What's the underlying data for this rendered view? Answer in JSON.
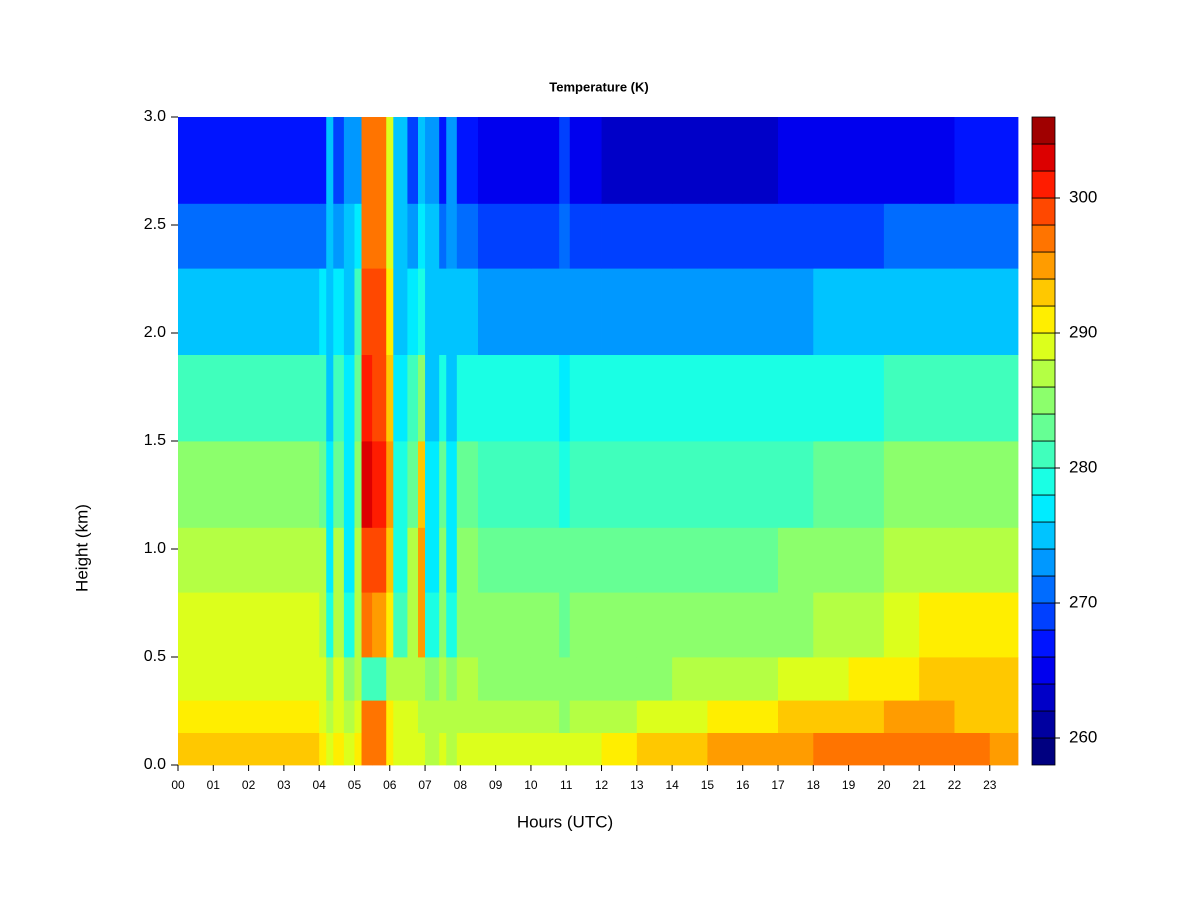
{
  "chart_data": {
    "type": "heatmap",
    "title": "Temperature (K)",
    "x_label": "Hours (UTC)",
    "y_label": "Height (km)",
    "xlim": [
      0,
      23.8
    ],
    "ylim": [
      0,
      3.0
    ],
    "xticks": [
      {
        "value": 0,
        "label": "00"
      },
      {
        "value": 1,
        "label": "01"
      },
      {
        "value": 2,
        "label": "02"
      },
      {
        "value": 3,
        "label": "03"
      },
      {
        "value": 4,
        "label": "04"
      },
      {
        "value": 5,
        "label": "05"
      },
      {
        "value": 6,
        "label": "06"
      },
      {
        "value": 7,
        "label": "07"
      },
      {
        "value": 8,
        "label": "08"
      },
      {
        "value": 9,
        "label": "09"
      },
      {
        "value": 10,
        "label": "10"
      },
      {
        "value": 11,
        "label": "11"
      },
      {
        "value": 12,
        "label": "12"
      },
      {
        "value": 13,
        "label": "13"
      },
      {
        "value": 14,
        "label": "14"
      },
      {
        "value": 15,
        "label": "15"
      },
      {
        "value": 16,
        "label": "16"
      },
      {
        "value": 17,
        "label": "17"
      },
      {
        "value": 18,
        "label": "18"
      },
      {
        "value": 19,
        "label": "19"
      },
      {
        "value": 20,
        "label": "20"
      },
      {
        "value": 21,
        "label": "21"
      },
      {
        "value": 22,
        "label": "22"
      },
      {
        "value": 23,
        "label": "23"
      }
    ],
    "yticks": [
      {
        "value": 0,
        "label": "0.0"
      },
      0.5,
      {
        "value": 1,
        "label": "1.0"
      },
      1.5,
      {
        "value": 2,
        "label": "2.0"
      },
      2.5,
      {
        "value": 3,
        "label": "3.0"
      }
    ],
    "zlim": [
      258,
      306
    ],
    "zticks": [
      260,
      270,
      280,
      290,
      300
    ],
    "colors": [
      "#000080",
      "#0000a0",
      "#0000c8",
      "#0000ee",
      "#0014ff",
      "#0040ff",
      "#006cff",
      "#0098ff",
      "#00c4ff",
      "#00ecff",
      "#1affe4",
      "#40ffbc",
      "#66ff94",
      "#8cff6c",
      "#b4ff44",
      "#dcff1c",
      "#ffee00",
      "#ffc800",
      "#ff9c00",
      "#ff7400",
      "#ff4800",
      "#ff1c00",
      "#dc0000",
      "#a00000"
    ],
    "x": [
      0,
      2,
      4,
      4.2,
      4.4,
      4.7,
      5,
      5.2,
      5.5,
      5.9,
      6.1,
      6.5,
      6.8,
      7,
      7.4,
      7.6,
      7.9,
      8.5,
      10,
      10.8,
      11.1,
      12,
      13,
      14,
      15,
      16,
      17,
      18,
      19,
      20,
      21,
      22,
      23,
      23.8
    ],
    "y": [
      0,
      0.15,
      0.3,
      0.5,
      0.8,
      1.1,
      1.5,
      1.9,
      2.3,
      2.6,
      3.0
    ],
    "values": [
      [
        292,
        292,
        290,
        289,
        290,
        289,
        290,
        297,
        297,
        291,
        289,
        289,
        288,
        287,
        288,
        287,
        289,
        288,
        288,
        288,
        289,
        291,
        292,
        293,
        294,
        294,
        295,
        296,
        297,
        297,
        296,
        296,
        295
      ],
      [
        290,
        290,
        289,
        287,
        289,
        287,
        289,
        296,
        296,
        290,
        288,
        288,
        287,
        286,
        287,
        286,
        287,
        286,
        286,
        285,
        286,
        287,
        288,
        289,
        290,
        291,
        292,
        293,
        293,
        294,
        294,
        293,
        293
      ],
      [
        289,
        289,
        288,
        285,
        288,
        285,
        287,
        280,
        280,
        287,
        286,
        287,
        286,
        284,
        286,
        284,
        286,
        285,
        285,
        284,
        285,
        285,
        285,
        286,
        286,
        287,
        288,
        289,
        290,
        291,
        292,
        292,
        292
      ],
      [
        288,
        288,
        287,
        278,
        287,
        279,
        287,
        296,
        295,
        290,
        281,
        286,
        294,
        279,
        285,
        278,
        285,
        284,
        284,
        283,
        284,
        284,
        284,
        284,
        284,
        285,
        285,
        286,
        287,
        289,
        290,
        290,
        290
      ],
      [
        287,
        287,
        286,
        277,
        286,
        277,
        286,
        299,
        298,
        293,
        279,
        286,
        294,
        277,
        285,
        277,
        284,
        283,
        283,
        282,
        283,
        283,
        283,
        283,
        283,
        283,
        284,
        284,
        285,
        287,
        287,
        287,
        287
      ],
      [
        284,
        284,
        283,
        276,
        283,
        276,
        284,
        303,
        301,
        295,
        278,
        283,
        293,
        276,
        282,
        276,
        282,
        281,
        281,
        279,
        281,
        281,
        281,
        281,
        281,
        281,
        281,
        282,
        283,
        284,
        284,
        284,
        284
      ],
      [
        280,
        280,
        280,
        275,
        280,
        276,
        282,
        301,
        299,
        293,
        276,
        280,
        285,
        275,
        279,
        275,
        279,
        278,
        278,
        277,
        278,
        278,
        278,
        278,
        278,
        278,
        278,
        279,
        279,
        280,
        280,
        280,
        280
      ],
      [
        275,
        275,
        276,
        274,
        276,
        275,
        280,
        299,
        298,
        291,
        275,
        276,
        279,
        274,
        275,
        274,
        274,
        273,
        273,
        273,
        273,
        273,
        273,
        273,
        273,
        273,
        273,
        274,
        274,
        275,
        275,
        275,
        275
      ],
      [
        270,
        270,
        271,
        274,
        272,
        274,
        276,
        297,
        296,
        289,
        275,
        272,
        276,
        274,
        271,
        273,
        270,
        268,
        268,
        270,
        268,
        268,
        268,
        268,
        268,
        268,
        268,
        269,
        269,
        270,
        270,
        270,
        270
      ],
      [
        266,
        266,
        267,
        274,
        268,
        273,
        272,
        296,
        296,
        288,
        275,
        268,
        274,
        273,
        267,
        272,
        266,
        264,
        264,
        268,
        264,
        263,
        263,
        263,
        263,
        263,
        264,
        264,
        265,
        265,
        265,
        266,
        266
      ]
    ]
  }
}
